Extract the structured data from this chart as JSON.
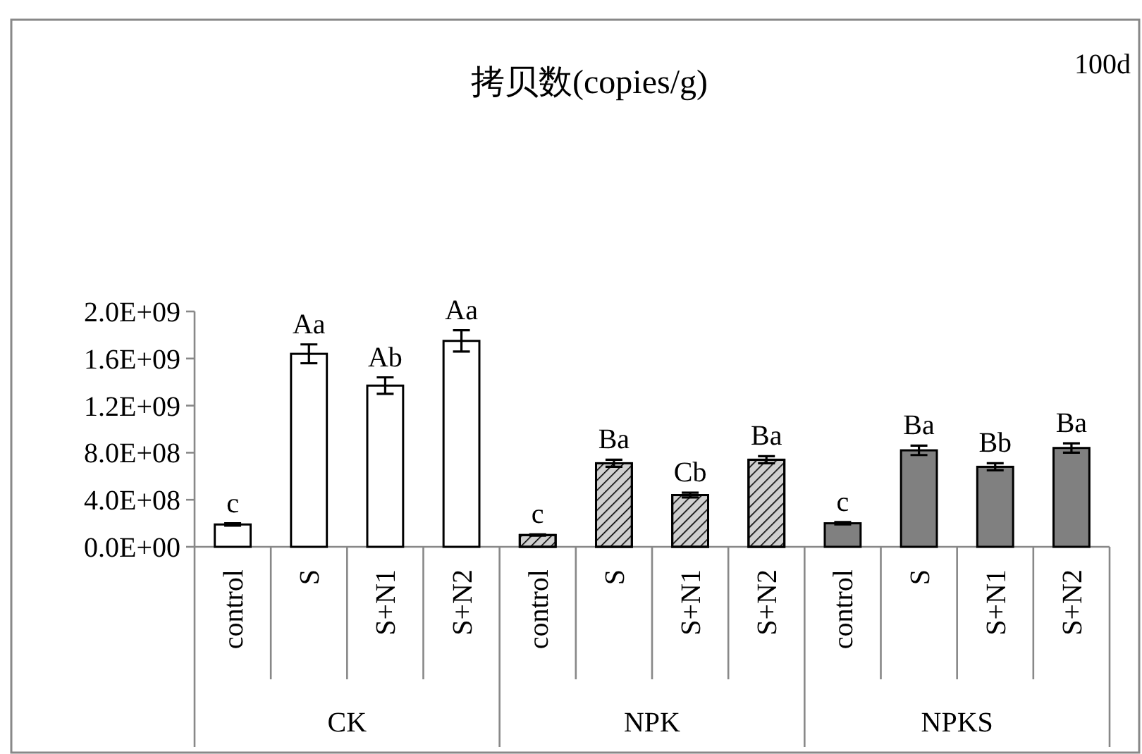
{
  "chart_data": {
    "type": "bar",
    "title": "拷贝数(copies/g)",
    "annotations": [
      "100d",
      "CK",
      "NPK",
      "NPKS"
    ],
    "categories": [
      "control",
      "S",
      "S+N1",
      "S+N2",
      "control",
      "S",
      "S+N1",
      "S+N2",
      "control",
      "S",
      "S+N1",
      "S+N2"
    ],
    "values": [
      190000000.0,
      1640000000.0,
      1370000000.0,
      1750000000.0,
      100000000.0,
      710000000.0,
      440000000.0,
      740000000.0,
      200000000.0,
      820000000.0,
      680000000.0,
      840000000.0
    ],
    "errors": [
      10000000.0,
      80000000.0,
      70000000.0,
      90000000.0,
      5000000.0,
      30000000.0,
      20000000.0,
      30000000.0,
      10000000.0,
      40000000.0,
      30000000.0,
      40000000.0
    ],
    "colors": [
      "#ffffff",
      "#ffffff",
      "#ffffff",
      "#ffffff",
      "#d0d0d0",
      "#d0d0d0",
      "#d0d0d0",
      "#d0d0d0",
      "#808080",
      "#808080",
      "#808080",
      "#808080"
    ],
    "value_labels": [
      "c",
      "Aa",
      "Ab",
      "Aa",
      "c",
      "Ba",
      "Cb",
      "Ba",
      "c",
      "Ba",
      "Bb",
      "Ba"
    ],
    "ylim": [
      0,
      2000000000.0
    ],
    "yticks": [
      {
        "value": 0,
        "label": "0.0E+00"
      },
      {
        "value": 400000000.0,
        "label": "4.0E+08"
      },
      {
        "value": 800000000.0,
        "label": "8.0E+08"
      },
      {
        "value": 1200000000.0,
        "label": "1.2E+09"
      },
      {
        "value": 1600000000.0,
        "label": "1.6E+09"
      },
      {
        "value": 2000000000.0,
        "label": "2.0E+09"
      }
    ],
    "grid": false
  }
}
